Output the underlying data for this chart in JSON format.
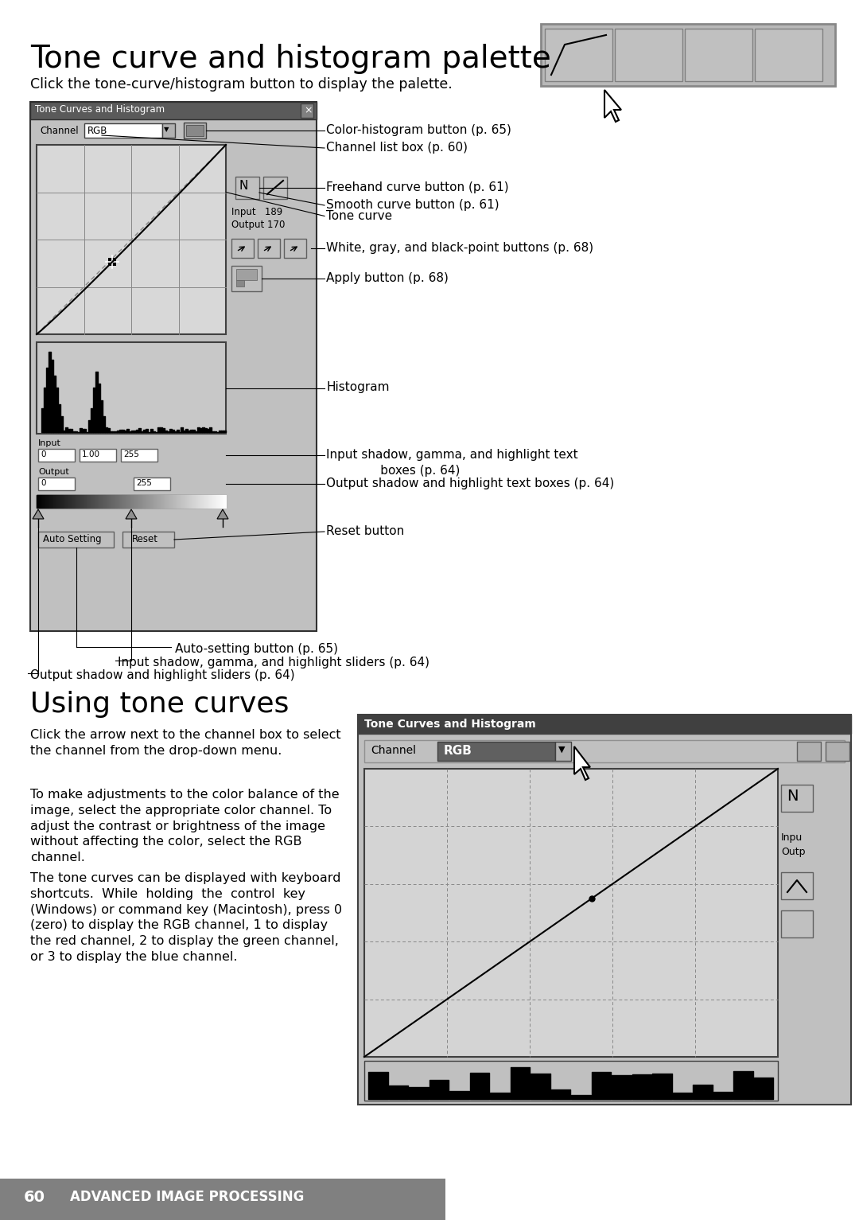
{
  "title": "Tone curve and histogram palette",
  "subtitle": "Click the tone-curve/histogram button to display the palette.",
  "section2_title": "Using tone curves",
  "p1": "Click the arrow next to the channel box to select\nthe channel from the drop-down menu.",
  "p2": "To make adjustments to the color balance of the\nimage, select the appropriate color channel. To\nadjust the contrast or brightness of the image\nwithout affecting the color, select the RGB\nchannel.",
  "p3": "The tone curves can be displayed with keyboard\nshortcuts.  While  holding  the  control  key\n(Windows) or command key (Macintosh), press 0\n(zero) to display the RGB channel, 1 to display\nthe red channel, 2 to display the green channel,\nor 3 to display the blue channel.",
  "footer_num": "60",
  "footer_label": "ADVANCED IMAGE PROCESSING",
  "ann_color_hist": "Color-histogram button (p. 65)",
  "ann_channel_list": "Channel list box (p. 60)",
  "ann_tone_curve": "Tone curve",
  "ann_freehand": "Freehand curve button (p. 61)",
  "ann_smooth": "Smooth curve button (p. 61)",
  "ann_white_gray": "White, gray, and black-point buttons (p. 68)",
  "ann_apply": "Apply button (p. 68)",
  "ann_histogram": "Histogram",
  "ann_input_boxes": "Input shadow, gamma, and highlight text\n              boxes (p. 64)",
  "ann_output_boxes": "Output shadow and highlight text boxes (p. 64)",
  "ann_reset": "Reset button",
  "ann_auto": "Auto-setting button (p. 65)",
  "ann_input_sliders": "Input shadow, gamma, and highlight sliders (p. 64)",
  "ann_output_sliders": "Output shadow and highlight sliders (p. 64)",
  "bg": "#ffffff",
  "dlg_bg": "#c0c0c0",
  "dlg_title_bg": "#5a5a5a",
  "tc_area_bg": "#d0d0d0",
  "hist_area_bg": "#c8c8c8"
}
